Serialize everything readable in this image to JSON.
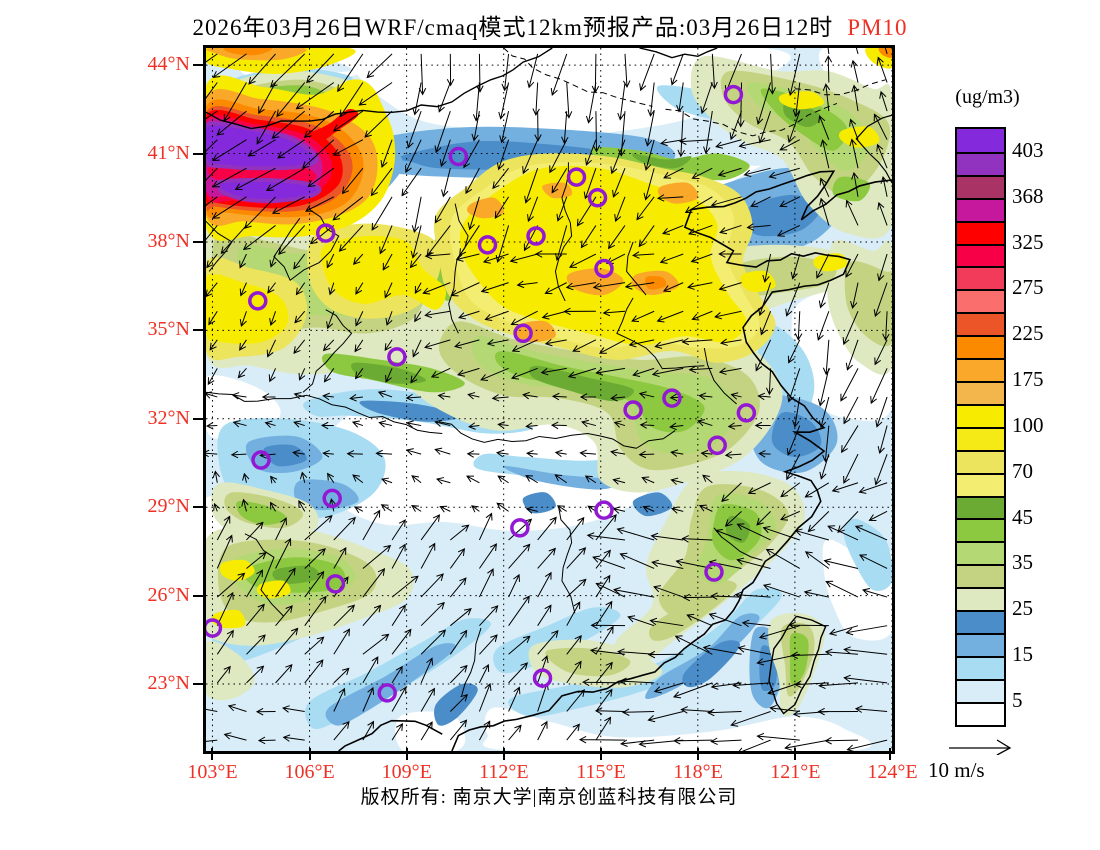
{
  "title": {
    "text": "2026年03月26日WRF/cmaq模式12km预报产品:03月26日12时",
    "species": "PM10"
  },
  "colorbar": {
    "units": "(ug/m3)",
    "labels": [
      "403",
      "368",
      "325",
      "275",
      "225",
      "175",
      "100",
      "70",
      "45",
      "35",
      "25",
      "15",
      "5"
    ],
    "colors": [
      "#8429dc",
      "#9133bf",
      "#aa3366",
      "#c6189c",
      "#fe0000",
      "#f80048",
      "#f23a5a",
      "#fb6e6e",
      "#ec5528",
      "#fc8a00",
      "#f9a829",
      "#f2b64c",
      "#f7ec00",
      "#f6ea16",
      "#ede45e",
      "#f3ee71",
      "#6cab33",
      "#8dc841",
      "#b4d873",
      "#c4d382",
      "#dee9c1",
      "#4a8dc8",
      "#73b0e0",
      "#a8dcf2",
      "#d9edf8",
      "#ffffff"
    ]
  },
  "axes": {
    "lat": [
      "44°N",
      "41°N",
      "38°N",
      "35°N",
      "32°N",
      "29°N",
      "26°N",
      "23°N"
    ],
    "lon": [
      "103°E",
      "106°E",
      "109°E",
      "112°E",
      "115°E",
      "118°E",
      "121°E",
      "124°E"
    ],
    "label_color": "#ee3124"
  },
  "wind_ref": {
    "label": "10 m/s"
  },
  "footer": {
    "text": "版权所有: 南京大学|南京创蓝科技有限公司"
  },
  "chart_data": {
    "type": "heatmap",
    "subtype": "filled-contour-map-with-wind-vectors",
    "field": "PM10 concentration",
    "units": "ug/m3",
    "lon_range": [
      102.8,
      124.0
    ],
    "lat_range": [
      20.7,
      44.6
    ],
    "lon_ticks": [
      103,
      106,
      109,
      112,
      115,
      118,
      121,
      124
    ],
    "lat_ticks": [
      23,
      26,
      29,
      32,
      35,
      38,
      41,
      44
    ],
    "levels": [
      5,
      15,
      25,
      35,
      45,
      70,
      100,
      175,
      225,
      275,
      325,
      368,
      403
    ],
    "legend_position": "right",
    "grid": "dotted",
    "wind_ref_speed_ms": 10,
    "features": [
      {
        "name": "northwest-maximum",
        "lon": 104.6,
        "lat": 40.8,
        "value": ">403"
      },
      {
        "name": "secondary-maximum",
        "lon": 104.9,
        "lat": 39.7,
        "value": ">403"
      },
      {
        "name": "north-china-plain-plume",
        "lon_span": [
          110.8,
          119.5
        ],
        "lat_span": [
          34.3,
          40.5
        ],
        "value": "70-175"
      },
      {
        "name": "central-low-region",
        "lon_span": [
          106.5,
          116.5
        ],
        "lat_span": [
          28.3,
          32.3
        ],
        "value": "<5"
      },
      {
        "name": "southern-china-and-seas",
        "value": "5-25"
      },
      {
        "name": "northeast-vegetated-band",
        "value": "25-45"
      }
    ]
  },
  "city_markers": [
    [
      110.6,
      40.9
    ],
    [
      119.1,
      43.0
    ],
    [
      114.25,
      40.2
    ],
    [
      114.9,
      39.5
    ],
    [
      115.1,
      37.1
    ],
    [
      106.5,
      38.3
    ],
    [
      111.5,
      37.9
    ],
    [
      113.0,
      38.2
    ],
    [
      104.4,
      36.0
    ],
    [
      108.7,
      34.1
    ],
    [
      112.6,
      34.9
    ],
    [
      104.5,
      30.6
    ],
    [
      106.7,
      29.3
    ],
    [
      112.5,
      28.3
    ],
    [
      115.1,
      28.9
    ],
    [
      118.5,
      26.8
    ],
    [
      116.0,
      32.3
    ],
    [
      117.2,
      32.7
    ],
    [
      119.5,
      32.2
    ],
    [
      118.6,
      31.1
    ],
    [
      103.0,
      24.9
    ],
    [
      106.8,
      26.4
    ],
    [
      108.4,
      22.7
    ],
    [
      113.2,
      23.2
    ]
  ]
}
